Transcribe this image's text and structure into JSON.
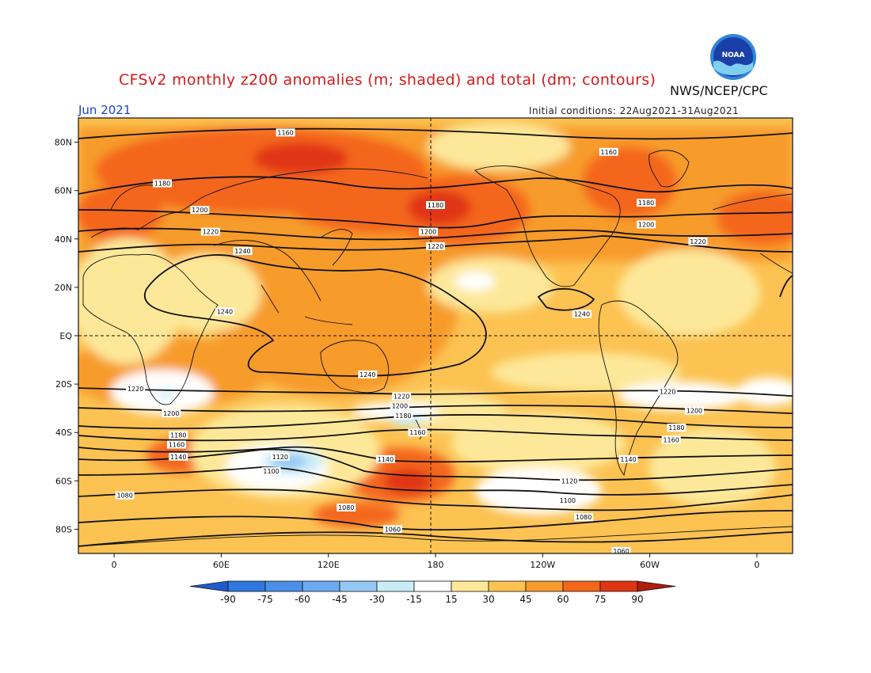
{
  "header": {
    "title": "CFSv2 monthly z200 anomalies (m; shaded) and total (dm; contours)",
    "agency": "NWS/NCEP/CPC",
    "period": "Jun 2021",
    "initial_conditions": "Initial conditions: 22Aug2021-31Aug2021",
    "logo_text": "NOAA"
  },
  "axes": {
    "lat_labels": [
      "80N",
      "60N",
      "40N",
      "20N",
      "EQ",
      "20S",
      "40S",
      "60S",
      "80S"
    ],
    "lon_labels": [
      "0",
      "60E",
      "120E",
      "180",
      "120W",
      "60W",
      "0"
    ]
  },
  "colorbar": {
    "levels": [
      "-90",
      "-75",
      "-60",
      "-45",
      "-30",
      "-15",
      "15",
      "30",
      "45",
      "60",
      "75",
      "90"
    ],
    "colors": [
      "#1e5ccc",
      "#2f78e0",
      "#4b90e8",
      "#6aaaf0",
      "#96c8f5",
      "#c8ecf8",
      "#ffffff",
      "#fde89a",
      "#fcc252",
      "#f79b2c",
      "#f4661a",
      "#e03512",
      "#b01c0c"
    ]
  },
  "contour_labels": [
    {
      "text": "1160",
      "lon": 96,
      "lat": 84
    },
    {
      "text": "1160",
      "lon": 277,
      "lat": 76
    },
    {
      "text": "1180",
      "lon": 27,
      "lat": 63
    },
    {
      "text": "1180",
      "lon": 180,
      "lat": 54
    },
    {
      "text": "1180",
      "lon": 298,
      "lat": 55
    },
    {
      "text": "1200",
      "lon": 48,
      "lat": 52
    },
    {
      "text": "1200",
      "lon": 176,
      "lat": 43
    },
    {
      "text": "1200",
      "lon": 298,
      "lat": 46
    },
    {
      "text": "1220",
      "lon": 54,
      "lat": 43
    },
    {
      "text": "1220",
      "lon": 180,
      "lat": 37
    },
    {
      "text": "1220",
      "lon": 327,
      "lat": 39
    },
    {
      "text": "1240",
      "lon": 72,
      "lat": 35
    },
    {
      "text": "1240",
      "lon": 62,
      "lat": 10
    },
    {
      "text": "1240",
      "lon": 262,
      "lat": 9
    },
    {
      "text": "1240",
      "lon": 142,
      "lat": -16
    },
    {
      "text": "1220",
      "lon": 12,
      "lat": -22
    },
    {
      "text": "1220",
      "lon": 161,
      "lat": -25
    },
    {
      "text": "1220",
      "lon": 310,
      "lat": -23
    },
    {
      "text": "1200",
      "lon": 32,
      "lat": -32
    },
    {
      "text": "1200",
      "lon": 160,
      "lat": -29
    },
    {
      "text": "1200",
      "lon": 325,
      "lat": -31
    },
    {
      "text": "1180",
      "lon": 36,
      "lat": -41
    },
    {
      "text": "1180",
      "lon": 162,
      "lat": -33
    },
    {
      "text": "1180",
      "lon": 315,
      "lat": -38
    },
    {
      "text": "1160",
      "lon": 35,
      "lat": -45
    },
    {
      "text": "1160",
      "lon": 170,
      "lat": -40
    },
    {
      "text": "1160",
      "lon": 312,
      "lat": -43
    },
    {
      "text": "1140",
      "lon": 36,
      "lat": -50
    },
    {
      "text": "1140",
      "lon": 152,
      "lat": -51
    },
    {
      "text": "1140",
      "lon": 288,
      "lat": -51
    },
    {
      "text": "1120",
      "lon": 93,
      "lat": -50
    },
    {
      "text": "1120",
      "lon": 255,
      "lat": -60
    },
    {
      "text": "1100",
      "lon": 88,
      "lat": -56
    },
    {
      "text": "1100",
      "lon": 254,
      "lat": -68
    },
    {
      "text": "1080",
      "lon": 6,
      "lat": -66
    },
    {
      "text": "1080",
      "lon": 130,
      "lat": -71
    },
    {
      "text": "1080",
      "lon": 263,
      "lat": -75
    },
    {
      "text": "1060",
      "lon": 156,
      "lat": -80
    },
    {
      "text": "1060",
      "lon": 284,
      "lat": -89
    }
  ]
}
